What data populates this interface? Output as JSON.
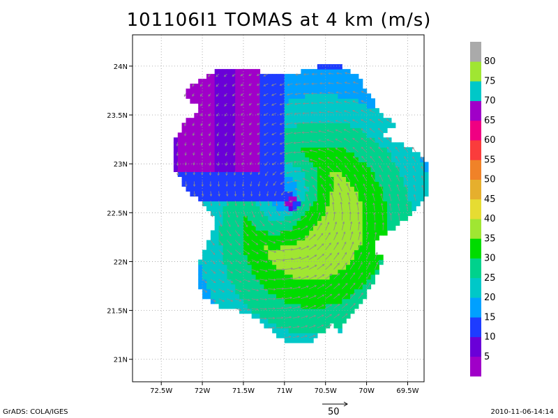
{
  "chart_data": {
    "type": "heatmap",
    "title": "101106I1 TOMAS at 4 km (m/s)",
    "x_tick_labels": [
      "72.5W",
      "72W",
      "71.5W",
      "71W",
      "70.5W",
      "70W",
      "69.5W"
    ],
    "x_ticks": [
      -72.5,
      -72,
      -71.5,
      -71,
      -70.5,
      -70,
      -69.5
    ],
    "y_tick_labels": [
      "21N",
      "21.5N",
      "22N",
      "22.5N",
      "23N",
      "23.5N",
      "24N"
    ],
    "y_ticks": [
      21,
      21.5,
      22,
      22.5,
      23,
      23.5,
      24
    ],
    "xlim": [
      -72.85,
      -69.3
    ],
    "ylim": [
      20.77,
      24.32
    ],
    "grid": true,
    "colorbar": {
      "labels": [
        "5",
        "10",
        "15",
        "20",
        "25",
        "30",
        "35",
        "40",
        "45",
        "50",
        "55",
        "60",
        "65",
        "70",
        "75",
        "80"
      ],
      "colors": [
        "#a000c8",
        "#6a00d8",
        "#1e3cff",
        "#00a0ff",
        "#00c8c8",
        "#00d28c",
        "#00dc00",
        "#a0e632",
        "#e6dc32",
        "#e6af2d",
        "#f08228",
        "#fa3c3c",
        "#f00082",
        "#a000c8",
        "#00c8c8",
        "#a0e632",
        "#aaaaaa"
      ]
    },
    "storm_center": {
      "lon": -70.9,
      "lat": 22.6
    },
    "vector_reference": {
      "label": "50",
      "value": 50
    }
  },
  "footer": {
    "left": "GrADS: COLA/IGES",
    "right": "2010-11-06-14:14"
  }
}
